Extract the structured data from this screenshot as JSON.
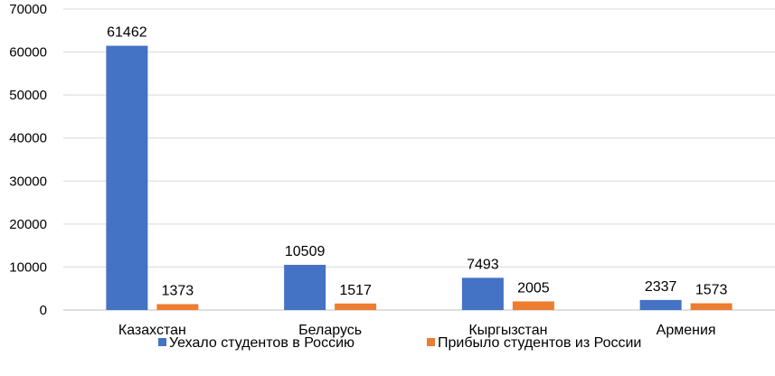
{
  "chart_data": {
    "type": "bar",
    "categories": [
      "Казахстан",
      "Беларусь",
      "Кыргызстан",
      "Армения"
    ],
    "series": [
      {
        "name": "Уехало студентов в Россию",
        "values": [
          61462,
          10509,
          7493,
          2337
        ],
        "color": "#4472C4"
      },
      {
        "name": "Прибыло студентов из России",
        "values": [
          1373,
          1517,
          2005,
          1573
        ],
        "color": "#ED7D31"
      }
    ],
    "ylim": [
      0,
      70000
    ],
    "yticks": [
      0,
      10000,
      20000,
      30000,
      40000,
      50000,
      60000,
      70000
    ],
    "ytick_labels": [
      "0",
      "10000",
      "20000",
      "30000",
      "40000",
      "50000",
      "60000",
      "70000"
    ],
    "grid": true,
    "grid_color": "#D9D9D9",
    "data_labels": true,
    "legend_position": "bottom"
  }
}
